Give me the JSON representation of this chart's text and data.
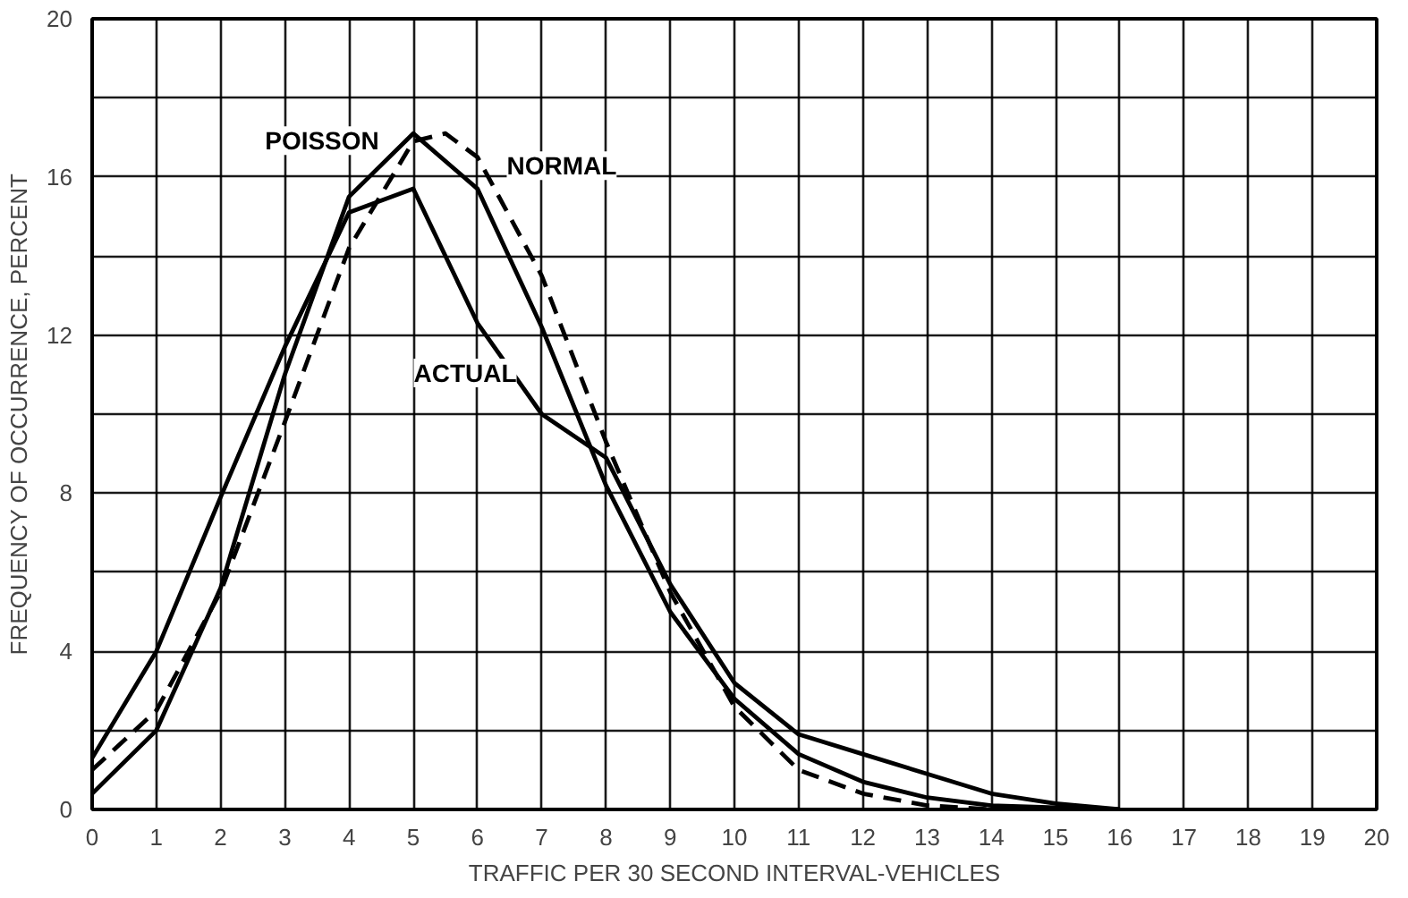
{
  "chart_data": {
    "type": "line",
    "xlabel": "TRAFFIC PER 30 SECOND INTERVAL-VEHICLES",
    "ylabel": "FREQUENCY OF OCCURRENCE, PERCENT",
    "xlim": [
      0,
      20
    ],
    "ylim": [
      0,
      20
    ],
    "xticks": [
      0,
      1,
      2,
      3,
      4,
      5,
      6,
      7,
      8,
      9,
      10,
      11,
      12,
      13,
      14,
      15,
      16,
      17,
      18,
      19,
      20
    ],
    "yticks": [
      0,
      {
        "value": 2,
        "label": null
      },
      4,
      {
        "value": 6,
        "label": null
      },
      8,
      {
        "value": 10,
        "label": null
      },
      12,
      {
        "value": 14,
        "label": null
      },
      16,
      {
        "value": 18,
        "label": null
      },
      20
    ],
    "grid": true,
    "legend": false,
    "marker": "none",
    "series": [
      {
        "name": "ACTUAL",
        "color": "#000000",
        "line_style": "solid",
        "x": [
          0,
          1,
          2,
          3,
          4,
          5,
          6,
          7,
          8,
          9,
          10,
          11,
          12,
          13,
          14,
          15,
          16
        ],
        "values": [
          1.3,
          4.0,
          7.9,
          11.7,
          15.1,
          15.7,
          12.3,
          10.0,
          8.9,
          5.7,
          3.2,
          1.9,
          1.4,
          0.9,
          0.4,
          0.15,
          0
        ]
      },
      {
        "name": "POISSON",
        "color": "#000000",
        "line_style": "solid",
        "x": [
          0,
          1,
          2,
          3,
          4,
          5,
          6,
          7,
          8,
          9,
          10,
          11,
          12,
          13,
          14,
          15,
          16
        ],
        "values": [
          0.4,
          2.0,
          5.6,
          11.0,
          15.5,
          17.1,
          15.7,
          12.2,
          8.2,
          5.0,
          2.8,
          1.4,
          0.7,
          0.3,
          0.1,
          0.05,
          0
        ]
      },
      {
        "name": "NORMAL",
        "color": "#000000",
        "line_style": "dashed",
        "x": [
          0,
          1,
          2,
          3,
          4,
          5,
          5.5,
          6,
          7,
          8,
          9,
          10,
          11,
          12,
          13,
          14
        ],
        "values": [
          1.0,
          2.5,
          5.5,
          9.8,
          14.2,
          16.9,
          17.1,
          16.5,
          13.5,
          9.3,
          5.5,
          2.6,
          1.0,
          0.4,
          0.1,
          0
        ]
      }
    ]
  }
}
